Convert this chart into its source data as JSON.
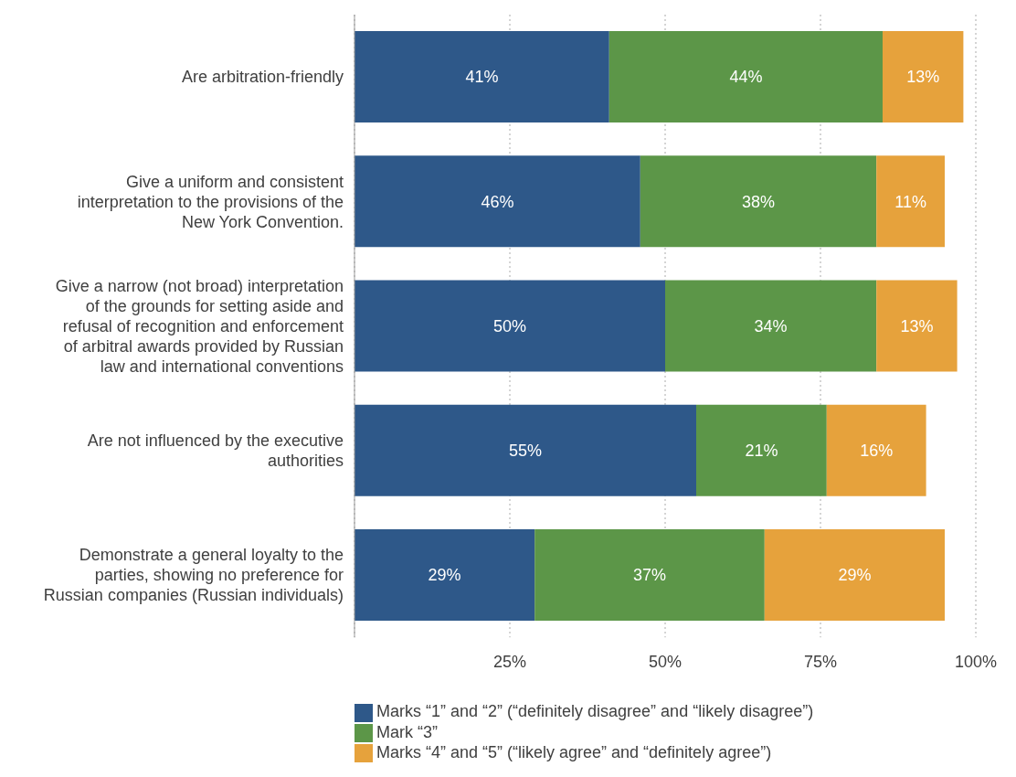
{
  "chart_data": {
    "type": "bar",
    "orientation": "horizontal",
    "stacked": true,
    "categories": [
      "Are arbitration-friendly",
      "Give a uniform and consistent interpretation to the provisions of the New York Convention.",
      "Give a narrow (not broad) interpretation of the grounds for setting aside and refusal of recognition and enforcement of arbitral awards provided by Russian law and international conventions",
      "Are not influenced by the executive authorities",
      "Demonstrate a general loyalty to the parties, showing no preference for Russian companies (Russian individuals)"
    ],
    "series": [
      {
        "name": "Marks “1” and “2” (“definitely disagree” and “likely disagree”)",
        "color": "#2e5889",
        "values": [
          41,
          46,
          50,
          55,
          29
        ],
        "value_labels": [
          "41%",
          "46%",
          "50%",
          "55%",
          "29%"
        ]
      },
      {
        "name": "Mark “3”",
        "color": "#5c9648",
        "values": [
          44,
          38,
          34,
          21,
          37
        ],
        "value_labels": [
          "44%",
          "38%",
          "34%",
          "21%",
          "37%"
        ]
      },
      {
        "name": "Marks “4” and “5” (“likely agree” and “definitely agree”)",
        "color": "#e6a23c",
        "values": [
          13,
          11,
          13,
          16,
          29
        ],
        "value_labels": [
          "13%",
          "11%",
          "13%",
          "16%",
          "29%"
        ]
      }
    ],
    "xlim": [
      0,
      100
    ],
    "xticks": [
      {
        "value": 0,
        "label": null
      },
      {
        "value": 25,
        "label": "25%"
      },
      {
        "value": 50,
        "label": "50%"
      },
      {
        "value": 75,
        "label": "75%"
      },
      {
        "value": 100,
        "label": "100%"
      }
    ],
    "grid": "x",
    "legend": "bottom"
  }
}
